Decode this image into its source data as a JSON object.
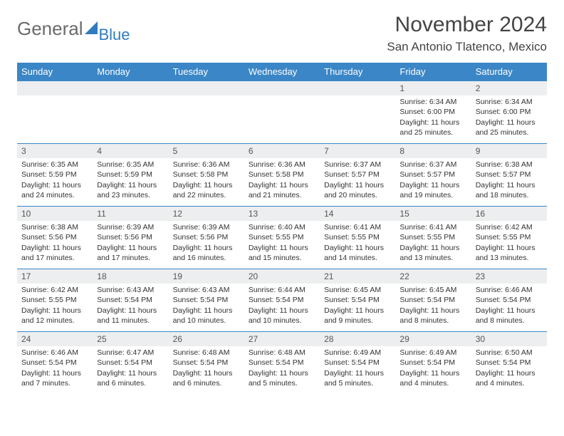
{
  "branding": {
    "word1": "General",
    "word2": "Blue"
  },
  "header": {
    "month_title": "November 2024",
    "location": "San Antonio Tlatenco, Mexico"
  },
  "calendar": {
    "day_headers": [
      "Sunday",
      "Monday",
      "Tuesday",
      "Wednesday",
      "Thursday",
      "Friday",
      "Saturday"
    ],
    "header_bg": "#3b86c6",
    "header_fg": "#ffffff",
    "daynum_bg": "#eceeef",
    "border_color": "#3b86c6",
    "weeks": [
      [
        null,
        null,
        null,
        null,
        null,
        {
          "num": "1",
          "sunrise": "Sunrise: 6:34 AM",
          "sunset": "Sunset: 6:00 PM",
          "daylight": "Daylight: 11 hours and 25 minutes."
        },
        {
          "num": "2",
          "sunrise": "Sunrise: 6:34 AM",
          "sunset": "Sunset: 6:00 PM",
          "daylight": "Daylight: 11 hours and 25 minutes."
        }
      ],
      [
        {
          "num": "3",
          "sunrise": "Sunrise: 6:35 AM",
          "sunset": "Sunset: 5:59 PM",
          "daylight": "Daylight: 11 hours and 24 minutes."
        },
        {
          "num": "4",
          "sunrise": "Sunrise: 6:35 AM",
          "sunset": "Sunset: 5:59 PM",
          "daylight": "Daylight: 11 hours and 23 minutes."
        },
        {
          "num": "5",
          "sunrise": "Sunrise: 6:36 AM",
          "sunset": "Sunset: 5:58 PM",
          "daylight": "Daylight: 11 hours and 22 minutes."
        },
        {
          "num": "6",
          "sunrise": "Sunrise: 6:36 AM",
          "sunset": "Sunset: 5:58 PM",
          "daylight": "Daylight: 11 hours and 21 minutes."
        },
        {
          "num": "7",
          "sunrise": "Sunrise: 6:37 AM",
          "sunset": "Sunset: 5:57 PM",
          "daylight": "Daylight: 11 hours and 20 minutes."
        },
        {
          "num": "8",
          "sunrise": "Sunrise: 6:37 AM",
          "sunset": "Sunset: 5:57 PM",
          "daylight": "Daylight: 11 hours and 19 minutes."
        },
        {
          "num": "9",
          "sunrise": "Sunrise: 6:38 AM",
          "sunset": "Sunset: 5:57 PM",
          "daylight": "Daylight: 11 hours and 18 minutes."
        }
      ],
      [
        {
          "num": "10",
          "sunrise": "Sunrise: 6:38 AM",
          "sunset": "Sunset: 5:56 PM",
          "daylight": "Daylight: 11 hours and 17 minutes."
        },
        {
          "num": "11",
          "sunrise": "Sunrise: 6:39 AM",
          "sunset": "Sunset: 5:56 PM",
          "daylight": "Daylight: 11 hours and 17 minutes."
        },
        {
          "num": "12",
          "sunrise": "Sunrise: 6:39 AM",
          "sunset": "Sunset: 5:56 PM",
          "daylight": "Daylight: 11 hours and 16 minutes."
        },
        {
          "num": "13",
          "sunrise": "Sunrise: 6:40 AM",
          "sunset": "Sunset: 5:55 PM",
          "daylight": "Daylight: 11 hours and 15 minutes."
        },
        {
          "num": "14",
          "sunrise": "Sunrise: 6:41 AM",
          "sunset": "Sunset: 5:55 PM",
          "daylight": "Daylight: 11 hours and 14 minutes."
        },
        {
          "num": "15",
          "sunrise": "Sunrise: 6:41 AM",
          "sunset": "Sunset: 5:55 PM",
          "daylight": "Daylight: 11 hours and 13 minutes."
        },
        {
          "num": "16",
          "sunrise": "Sunrise: 6:42 AM",
          "sunset": "Sunset: 5:55 PM",
          "daylight": "Daylight: 11 hours and 13 minutes."
        }
      ],
      [
        {
          "num": "17",
          "sunrise": "Sunrise: 6:42 AM",
          "sunset": "Sunset: 5:55 PM",
          "daylight": "Daylight: 11 hours and 12 minutes."
        },
        {
          "num": "18",
          "sunrise": "Sunrise: 6:43 AM",
          "sunset": "Sunset: 5:54 PM",
          "daylight": "Daylight: 11 hours and 11 minutes."
        },
        {
          "num": "19",
          "sunrise": "Sunrise: 6:43 AM",
          "sunset": "Sunset: 5:54 PM",
          "daylight": "Daylight: 11 hours and 10 minutes."
        },
        {
          "num": "20",
          "sunrise": "Sunrise: 6:44 AM",
          "sunset": "Sunset: 5:54 PM",
          "daylight": "Daylight: 11 hours and 10 minutes."
        },
        {
          "num": "21",
          "sunrise": "Sunrise: 6:45 AM",
          "sunset": "Sunset: 5:54 PM",
          "daylight": "Daylight: 11 hours and 9 minutes."
        },
        {
          "num": "22",
          "sunrise": "Sunrise: 6:45 AM",
          "sunset": "Sunset: 5:54 PM",
          "daylight": "Daylight: 11 hours and 8 minutes."
        },
        {
          "num": "23",
          "sunrise": "Sunrise: 6:46 AM",
          "sunset": "Sunset: 5:54 PM",
          "daylight": "Daylight: 11 hours and 8 minutes."
        }
      ],
      [
        {
          "num": "24",
          "sunrise": "Sunrise: 6:46 AM",
          "sunset": "Sunset: 5:54 PM",
          "daylight": "Daylight: 11 hours and 7 minutes."
        },
        {
          "num": "25",
          "sunrise": "Sunrise: 6:47 AM",
          "sunset": "Sunset: 5:54 PM",
          "daylight": "Daylight: 11 hours and 6 minutes."
        },
        {
          "num": "26",
          "sunrise": "Sunrise: 6:48 AM",
          "sunset": "Sunset: 5:54 PM",
          "daylight": "Daylight: 11 hours and 6 minutes."
        },
        {
          "num": "27",
          "sunrise": "Sunrise: 6:48 AM",
          "sunset": "Sunset: 5:54 PM",
          "daylight": "Daylight: 11 hours and 5 minutes."
        },
        {
          "num": "28",
          "sunrise": "Sunrise: 6:49 AM",
          "sunset": "Sunset: 5:54 PM",
          "daylight": "Daylight: 11 hours and 5 minutes."
        },
        {
          "num": "29",
          "sunrise": "Sunrise: 6:49 AM",
          "sunset": "Sunset: 5:54 PM",
          "daylight": "Daylight: 11 hours and 4 minutes."
        },
        {
          "num": "30",
          "sunrise": "Sunrise: 6:50 AM",
          "sunset": "Sunset: 5:54 PM",
          "daylight": "Daylight: 11 hours and 4 minutes."
        }
      ]
    ]
  }
}
